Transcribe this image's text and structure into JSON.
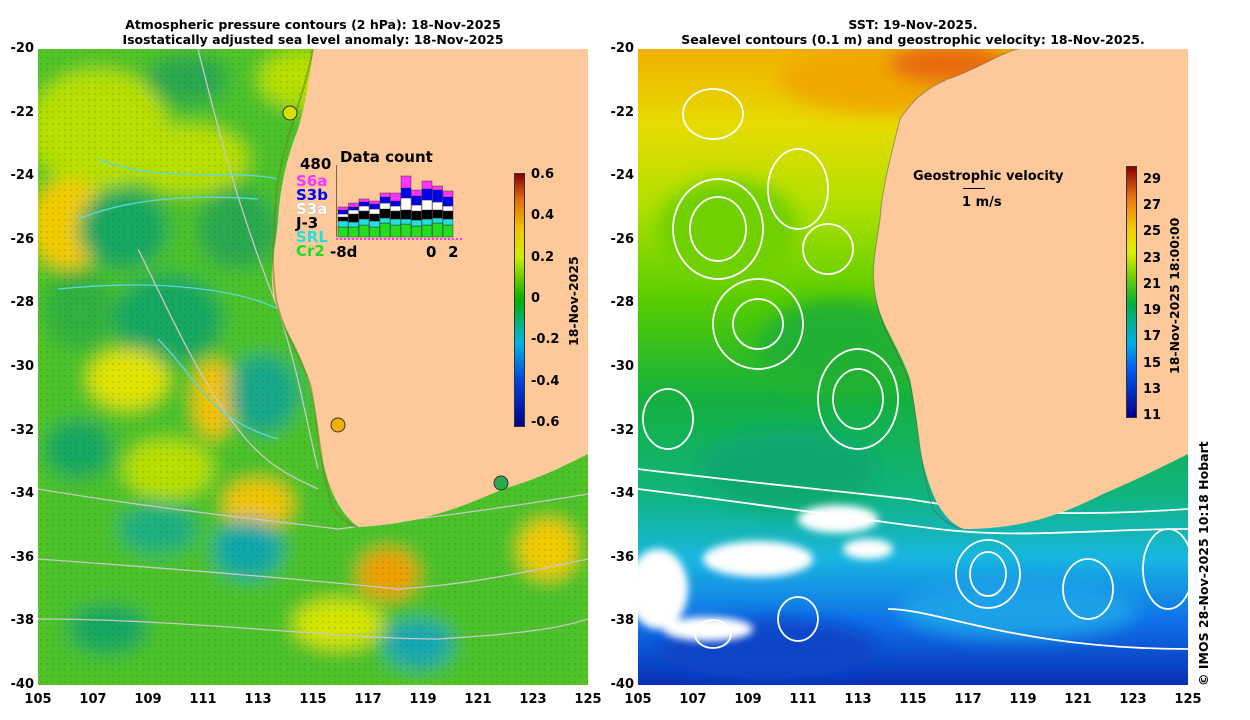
{
  "left": {
    "title_line1": "Atmospheric pressure contours (2 hPa): 18-Nov-2025",
    "title_line2": "Isostatically adjusted sea level anomaly: 18-Nov-2025",
    "colorbar": {
      "ticks": [
        "0.6",
        "0.4",
        "0.2",
        "0",
        "-0.2",
        "-0.4",
        "-0.6"
      ],
      "date_label": "18-Nov-2025"
    }
  },
  "right": {
    "title_line1": "SST: 19-Nov-2025.",
    "title_line2": "Sealevel contours (0.1 m) and geostrophic velocity: 18-Nov-2025.",
    "colorbar": {
      "ticks": [
        "29",
        "27",
        "25",
        "23",
        "21",
        "19",
        "17",
        "15",
        "13",
        "11"
      ],
      "date_label": "18-Nov-2025 18:00:00"
    },
    "velocity_title": "Geostrophic velocity",
    "velocity_scale": "1 m/s"
  },
  "axes": {
    "lat_ticks": [
      "-20",
      "-22",
      "-24",
      "-26",
      "-28",
      "-30",
      "-32",
      "-34",
      "-36",
      "-38",
      "-40"
    ],
    "lon_ticks": [
      "105",
      "107",
      "109",
      "111",
      "113",
      "115",
      "117",
      "119",
      "121",
      "123",
      "125"
    ]
  },
  "data_count": {
    "title": "Data count",
    "max_label": "480",
    "missions": [
      {
        "name": "S6a",
        "color": "#ff33ff"
      },
      {
        "name": "S3b",
        "color": "#0000ee"
      },
      {
        "name": "S3a",
        "color": "#ffffff"
      },
      {
        "name": "J-3",
        "color": "#000000"
      },
      {
        "name": "SRL",
        "color": "#22e0e0"
      },
      {
        "name": "Cr2",
        "color": "#22dd22"
      }
    ],
    "x_left": "-8d",
    "x_mid": "0",
    "x_right": "2"
  },
  "credit": "© IMOS 28-Nov-2025 10:18 Hobart",
  "colors": {
    "land": "#fdc99a",
    "land_dark": "#f6b98a"
  }
}
